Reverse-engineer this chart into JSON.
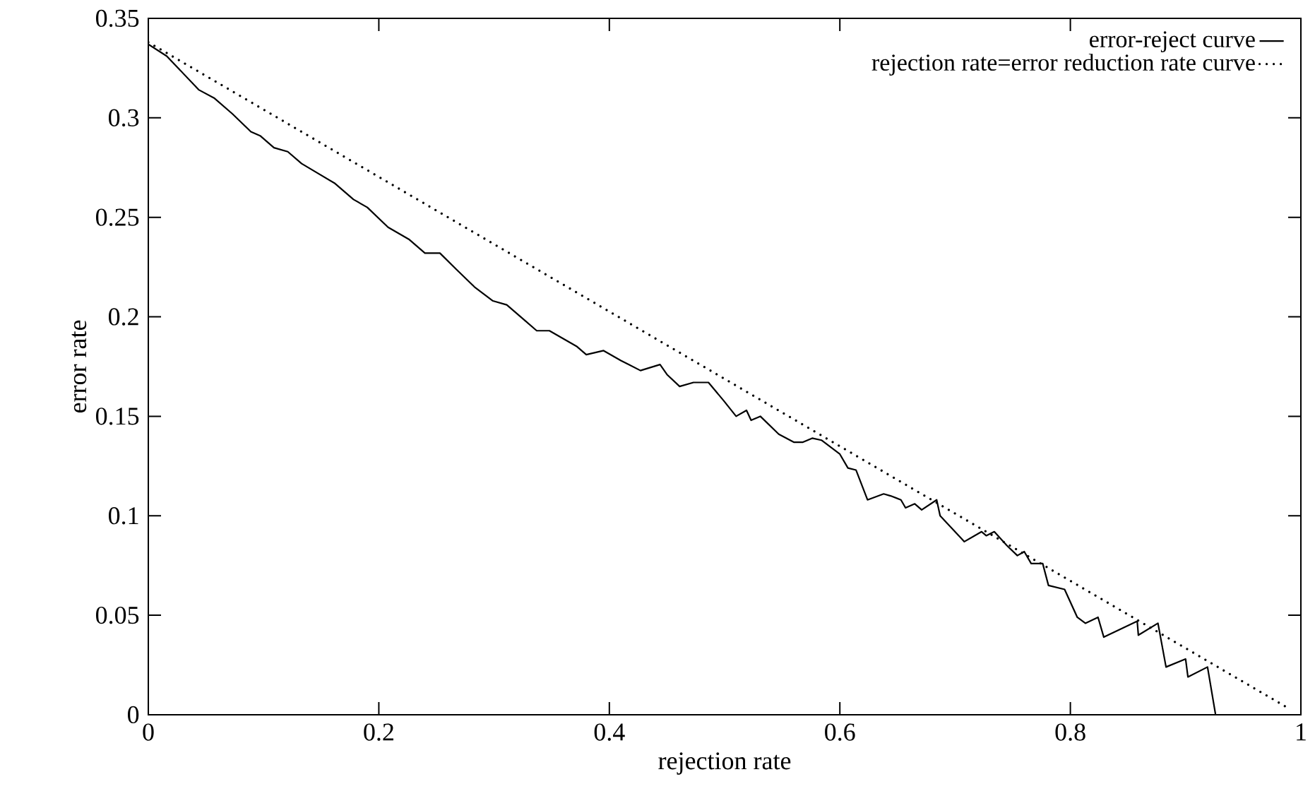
{
  "chart_data": {
    "type": "line",
    "xlabel": "rejection rate",
    "ylabel": "error rate",
    "xlim": [
      0,
      1
    ],
    "ylim": [
      0,
      0.35
    ],
    "xticks": [
      0,
      0.2,
      0.4,
      0.6,
      0.8,
      1
    ],
    "yticks": [
      0,
      0.05,
      0.1,
      0.15,
      0.2,
      0.25,
      0.3,
      0.35
    ],
    "legend": "top right",
    "marker": "none",
    "grid": false,
    "series": [
      {
        "name": "error-reject curve",
        "color": "#000000",
        "line_style": "solid",
        "x": [
          0,
          0.016,
          0.044,
          0.057,
          0.073,
          0.089,
          0.097,
          0.109,
          0.121,
          0.133,
          0.162,
          0.178,
          0.19,
          0.208,
          0.226,
          0.24,
          0.253,
          0.267,
          0.283,
          0.299,
          0.311,
          0.327,
          0.337,
          0.348,
          0.36,
          0.372,
          0.38,
          0.395,
          0.41,
          0.417,
          0.427,
          0.444,
          0.45,
          0.461,
          0.473,
          0.486,
          0.499,
          0.51,
          0.519,
          0.523,
          0.531,
          0.547,
          0.56,
          0.568,
          0.576,
          0.584,
          0.6,
          0.607,
          0.614,
          0.624,
          0.638,
          0.644,
          0.653,
          0.657,
          0.665,
          0.671,
          0.684,
          0.687,
          0.708,
          0.723,
          0.727,
          0.734,
          0.745,
          0.754,
          0.76,
          0.766,
          0.776,
          0.781,
          0.795,
          0.806,
          0.813,
          0.824,
          0.829,
          0.858,
          0.859,
          0.876,
          0.883,
          0.9,
          0.902,
          0.919,
          0.926
        ],
        "values": [
          0.337,
          0.331,
          0.314,
          0.31,
          0.302,
          0.293,
          0.291,
          0.285,
          0.283,
          0.277,
          0.267,
          0.259,
          0.255,
          0.245,
          0.239,
          0.232,
          0.232,
          0.224,
          0.215,
          0.208,
          0.206,
          0.198,
          0.193,
          0.193,
          0.189,
          0.185,
          0.181,
          0.183,
          0.178,
          0.176,
          0.173,
          0.176,
          0.171,
          0.165,
          0.167,
          0.167,
          0.158,
          0.15,
          0.153,
          0.148,
          0.15,
          0.141,
          0.137,
          0.137,
          0.139,
          0.138,
          0.131,
          0.124,
          0.123,
          0.108,
          0.111,
          0.11,
          0.108,
          0.104,
          0.106,
          0.103,
          0.108,
          0.1,
          0.087,
          0.092,
          0.09,
          0.092,
          0.085,
          0.08,
          0.082,
          0.076,
          0.076,
          0.065,
          0.063,
          0.049,
          0.046,
          0.049,
          0.039,
          0.047,
          0.04,
          0.046,
          0.024,
          0.028,
          0.019,
          0.024,
          0
        ]
      },
      {
        "name": "rejection rate=error reduction rate curve",
        "color": "#000000",
        "line_style": "dotted",
        "x": [
          0,
          0.99
        ],
        "values": [
          0.338,
          0.003
        ]
      }
    ]
  }
}
